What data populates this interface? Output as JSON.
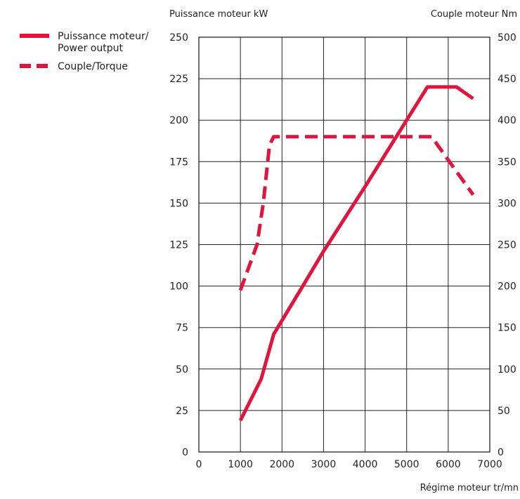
{
  "chart_data": {
    "type": "line",
    "left_axis_title": "Puissance moteur kW",
    "right_axis_title": "Couple moteur Nm",
    "x_axis_title": "Régime moteur tr/mn",
    "x_ticks": [
      0,
      1000,
      2000,
      3000,
      4000,
      5000,
      6000,
      7000
    ],
    "y_left_ticks": [
      0,
      25,
      50,
      75,
      100,
      125,
      150,
      175,
      200,
      225,
      250
    ],
    "y_right_ticks": [
      0,
      50,
      100,
      150,
      200,
      250,
      300,
      350,
      400,
      450,
      500
    ],
    "xlim": [
      0,
      7000
    ],
    "ylim_left": [
      0,
      250
    ],
    "ylim_right": [
      0,
      500
    ],
    "grid": true,
    "legend_placement": "top-left",
    "accent_color": "#e0143c",
    "series": [
      {
        "name": "Puissance moteur/\nPower output",
        "legend_lines": [
          "Puissance moteur/",
          "Power output"
        ],
        "axis": "left",
        "style": "solid",
        "x": [
          1000,
          1500,
          1800,
          2500,
          3000,
          4000,
          5000,
          5500,
          6200,
          6600
        ],
        "y": [
          19,
          44,
          71,
          100,
          121,
          160,
          200,
          220,
          220,
          213
        ]
      },
      {
        "name": "Couple/Torque",
        "legend_lines": [
          "Couple/Torque"
        ],
        "axis": "right",
        "style": "dashed",
        "x": [
          1000,
          1400,
          1550,
          1700,
          1800,
          5600,
          6100,
          6600
        ],
        "y": [
          195,
          250,
          300,
          370,
          380,
          380,
          345,
          310
        ]
      }
    ]
  }
}
